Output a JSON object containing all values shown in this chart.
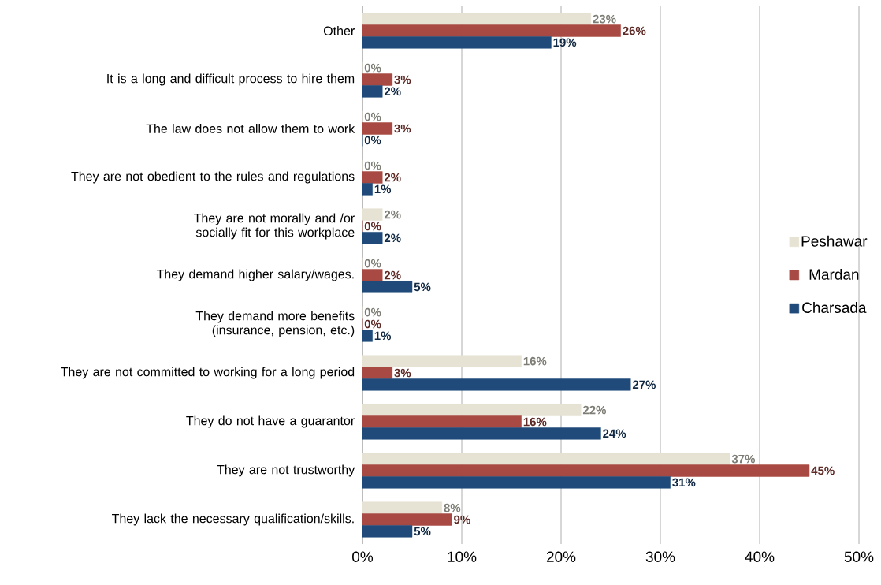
{
  "chart_data": {
    "type": "bar",
    "orientation": "horizontal",
    "categories": [
      "Other",
      "It is a long and difficult process to hire them",
      "The law does not allow them to work",
      "They are not obedient to the rules and regulations",
      "They are not morally and /or socially fit for this workplace",
      "They demand higher salary/wages.",
      "They demand more benefits (insurance, pension, etc.)",
      "They are not committed to working for a long period",
      "They do not have a guarantor",
      "They are not trustworthy",
      "They lack the necessary qualification/skills."
    ],
    "series": [
      {
        "name": "Peshawar",
        "color": "#e6e3d4",
        "values": [
          23,
          0,
          0,
          0,
          2,
          0,
          0,
          16,
          22,
          37,
          8
        ],
        "value_labels": [
          "23%",
          "0%",
          "0%",
          "0%",
          "2%",
          "0%",
          "0%",
          "16%",
          "22%",
          "37%",
          "8%"
        ]
      },
      {
        "name": "Mardan",
        "color": "#a84a43",
        "values": [
          26,
          3,
          3,
          2,
          0,
          2,
          0,
          3,
          16,
          45,
          9
        ],
        "value_labels": [
          "26%",
          "3%",
          "3%",
          "2%",
          "0%",
          "2%",
          "0%",
          "3%",
          "16%",
          "45%",
          "9%"
        ]
      },
      {
        "name": "Charsada",
        "color": "#1f4a7a",
        "values": [
          19,
          2,
          0,
          1,
          2,
          5,
          1,
          27,
          24,
          31,
          5
        ],
        "value_labels": [
          "19%",
          "2%",
          "0%",
          "1%",
          "2%",
          "5%",
          "1%",
          "27%",
          "24%",
          "31%",
          "5%"
        ]
      }
    ],
    "xlim": [
      0,
      50
    ],
    "xticks": [
      {
        "value": 0,
        "label": "0%"
      },
      {
        "value": 10,
        "label": "10%"
      },
      {
        "value": 20,
        "label": "20%"
      },
      {
        "value": 30,
        "label": "30%"
      },
      {
        "value": 40,
        "label": "40%"
      },
      {
        "value": 50,
        "label": "50%"
      }
    ],
    "grid": "x",
    "legend": "right"
  }
}
